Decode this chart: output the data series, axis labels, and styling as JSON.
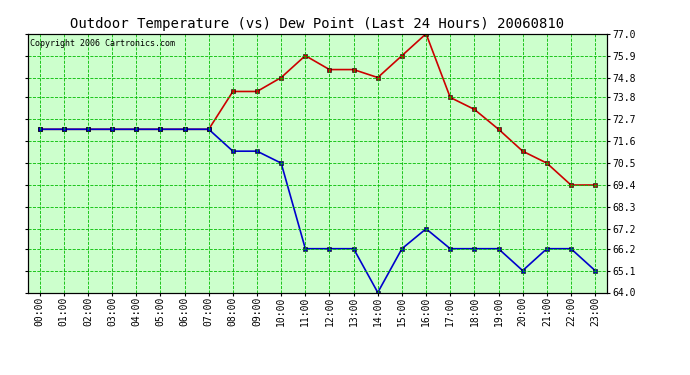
{
  "title": "Outdoor Temperature (vs) Dew Point (Last 24 Hours) 20060810",
  "copyright_text": "Copyright 2006 Cartronics.com",
  "x_labels": [
    "00:00",
    "01:00",
    "02:00",
    "03:00",
    "04:00",
    "05:00",
    "06:00",
    "07:00",
    "08:00",
    "09:00",
    "10:00",
    "11:00",
    "12:00",
    "13:00",
    "14:00",
    "15:00",
    "16:00",
    "17:00",
    "18:00",
    "19:00",
    "20:00",
    "21:00",
    "22:00",
    "23:00"
  ],
  "temp_data": [
    72.2,
    72.2,
    72.2,
    72.2,
    72.2,
    72.2,
    72.2,
    72.2,
    74.1,
    74.1,
    74.8,
    75.9,
    75.2,
    75.2,
    74.8,
    75.9,
    77.0,
    73.8,
    73.2,
    72.2,
    71.1,
    70.5,
    69.4,
    69.4
  ],
  "dew_data": [
    72.2,
    72.2,
    72.2,
    72.2,
    72.2,
    72.2,
    72.2,
    72.2,
    71.1,
    71.1,
    70.5,
    66.2,
    66.2,
    66.2,
    64.0,
    66.2,
    67.2,
    66.2,
    66.2,
    66.2,
    65.1,
    66.2,
    66.2,
    65.1
  ],
  "temp_color": "#cc0000",
  "dew_color": "#0000cc",
  "outer_bg_color": "#ffffff",
  "plot_bg_color": "#ccffcc",
  "grid_color": "#00bb00",
  "title_color": "#000000",
  "ylim_min": 64.0,
  "ylim_max": 77.0,
  "yticks": [
    64.0,
    65.1,
    66.2,
    67.2,
    68.3,
    69.4,
    70.5,
    71.6,
    72.7,
    73.8,
    74.8,
    75.9,
    77.0
  ],
  "marker": "s",
  "markersize": 2.5,
  "linewidth": 1.2,
  "title_fontsize": 10,
  "tick_fontsize": 7,
  "copyright_fontsize": 6
}
